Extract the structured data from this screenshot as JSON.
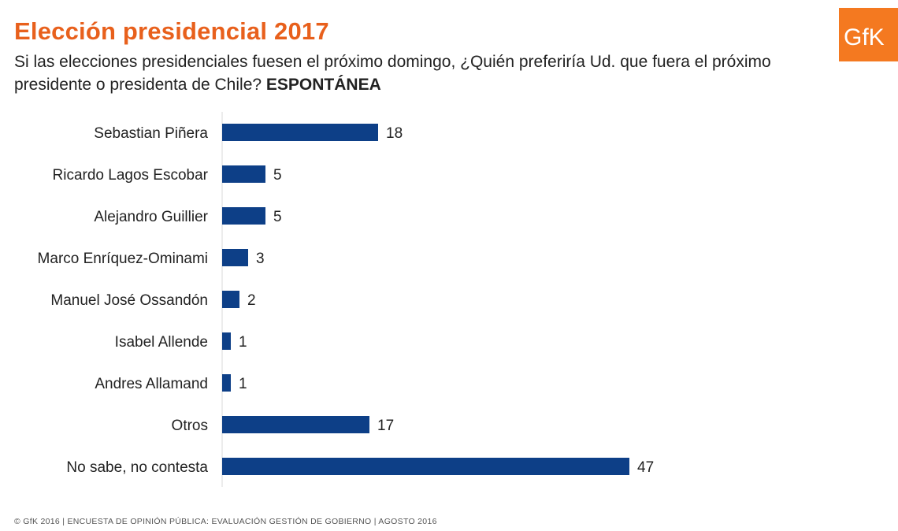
{
  "header": {
    "title": "Elección presidencial 2017",
    "subtitle": "Si las elecciones presidenciales fuesen el próximo domingo, ¿Quién preferiría Ud. que fuera el próximo presidente o presidenta de Chile?",
    "subtitle_emphasis": "ESPONTÁNEA"
  },
  "logo": {
    "text": "GfK",
    "color": "#f47920"
  },
  "footer": {
    "text": "© GfK 2016 | ENCUESTA DE OPINIÓN PÚBLICA: EVALUACIÓN GESTIÓN DE GOBIERNO | AGOSTO 2016"
  },
  "colors": {
    "bar": "#0d3f87",
    "title": "#e8601c"
  },
  "chart_data": {
    "type": "bar",
    "orientation": "horizontal",
    "categories": [
      "Sebastian Piñera",
      "Ricardo Lagos Escobar",
      "Alejandro Guillier",
      "Marco Enríquez-Ominami",
      "Manuel José Ossandón",
      "Isabel Allende",
      "Andres Allamand",
      "Otros",
      "No sabe, no contesta"
    ],
    "values": [
      18,
      5,
      5,
      3,
      2,
      1,
      1,
      17,
      47
    ],
    "xlim": [
      0,
      47
    ],
    "grid": false,
    "legend": false
  }
}
